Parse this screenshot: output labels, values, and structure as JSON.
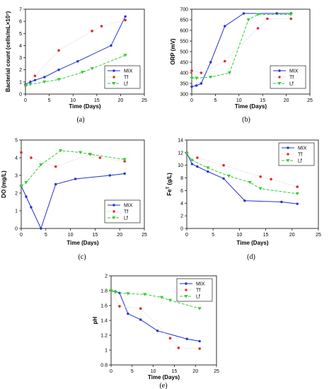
{
  "colors": {
    "MIX": "#2233cc",
    "Tf": "#e8262a",
    "Lf": "#33cc33"
  },
  "chart_data": [
    {
      "id": "a",
      "panel_label": "(a)",
      "type": "line",
      "xlabel": "Time (Days)",
      "ylabel": "Bacterial count (cells/mL×10⁷)",
      "xlim": [
        0,
        25
      ],
      "ylim": [
        0,
        7
      ],
      "xticks": [
        0,
        5,
        10,
        15,
        20,
        25
      ],
      "yticks": [
        0,
        1,
        2,
        3,
        4,
        5,
        6,
        7
      ],
      "legend_position": "bottom-right",
      "series": [
        {
          "name": "MIX",
          "style": "solid",
          "marker": "circle",
          "x": [
            0,
            1,
            2,
            4,
            7,
            11,
            18,
            21
          ],
          "y": [
            0.8,
            1.0,
            1.15,
            1.4,
            2.0,
            2.7,
            4.0,
            6.4
          ]
        },
        {
          "name": "Tf",
          "style": "dotted",
          "marker": "dot",
          "x": [
            0,
            2,
            7,
            14,
            16,
            21
          ],
          "y": [
            0.7,
            1.5,
            3.6,
            5.2,
            5.6,
            6.1
          ]
        },
        {
          "name": "Lf",
          "style": "dashed",
          "marker": "triangle",
          "x": [
            0,
            1,
            4,
            7,
            12,
            14,
            21
          ],
          "y": [
            0.7,
            0.8,
            1.0,
            1.2,
            1.8,
            2.1,
            3.2
          ]
        }
      ]
    },
    {
      "id": "b",
      "panel_label": "(b)",
      "type": "line",
      "xlabel": "Time (Days)",
      "ylabel": "ORP (mV)",
      "xlim": [
        0,
        25
      ],
      "ylim": [
        300,
        700
      ],
      "xticks": [
        0,
        5,
        10,
        15,
        20,
        25
      ],
      "yticks": [
        300,
        350,
        400,
        450,
        500,
        550,
        600,
        650,
        700
      ],
      "legend_position": "bottom-right",
      "series": [
        {
          "name": "MIX",
          "style": "solid",
          "marker": "circle",
          "x": [
            0,
            1,
            2,
            4,
            7,
            11,
            18,
            21
          ],
          "y": [
            335,
            340,
            350,
            450,
            620,
            680,
            680,
            680
          ]
        },
        {
          "name": "Tf",
          "style": "dotted",
          "marker": "dot",
          "x": [
            0,
            2,
            7,
            14,
            16,
            21
          ],
          "y": [
            410,
            400,
            455,
            610,
            655,
            655
          ]
        },
        {
          "name": "Lf",
          "style": "dashed",
          "marker": "triangle",
          "x": [
            0,
            1,
            4,
            8,
            12,
            14,
            21
          ],
          "y": [
            375,
            375,
            380,
            400,
            650,
            675,
            675
          ]
        }
      ]
    },
    {
      "id": "c",
      "panel_label": "(c)",
      "type": "line",
      "xlabel": "Time (Days)",
      "ylabel": "DO (mg/L)",
      "xlim": [
        0,
        25
      ],
      "ylim": [
        0,
        5
      ],
      "xticks": [
        0,
        5,
        10,
        15,
        20,
        25
      ],
      "yticks": [
        0,
        1,
        2,
        3,
        4,
        5
      ],
      "legend_position": "bottom-right",
      "series": [
        {
          "name": "MIX",
          "style": "solid",
          "marker": "circle",
          "x": [
            0,
            1,
            2,
            4,
            7,
            11,
            18,
            21
          ],
          "y": [
            2.4,
            1.8,
            1.2,
            0.0,
            2.5,
            2.8,
            3.0,
            3.1
          ]
        },
        {
          "name": "Tf",
          "style": "dotted",
          "marker": "dot",
          "x": [
            0,
            2,
            7,
            14,
            16,
            21
          ],
          "y": [
            4.3,
            4.0,
            3.5,
            4.2,
            4.0,
            3.8
          ]
        },
        {
          "name": "Lf",
          "style": "dashed",
          "marker": "triangle",
          "x": [
            0,
            1,
            4,
            8,
            12,
            14,
            21
          ],
          "y": [
            2.4,
            2.6,
            3.6,
            4.4,
            4.3,
            4.2,
            3.9
          ]
        }
      ]
    },
    {
      "id": "d",
      "panel_label": "(d)",
      "type": "line",
      "xlabel": "Time (Days)",
      "ylabel": "Fe",
      "ylabel_superscript": "T",
      "ylabel_suffix": " (g/L)",
      "xlim": [
        0,
        25
      ],
      "ylim": [
        0,
        14
      ],
      "xticks": [
        0,
        5,
        10,
        15,
        20,
        25
      ],
      "yticks": [
        0,
        2,
        4,
        6,
        8,
        10,
        12,
        14
      ],
      "legend_position": "top-right",
      "series": [
        {
          "name": "MIX",
          "style": "solid",
          "marker": "circle",
          "x": [
            0,
            1,
            2,
            4,
            7,
            11,
            18,
            21
          ],
          "y": [
            11.9,
            10.2,
            9.8,
            9.0,
            7.9,
            4.4,
            4.2,
            3.9
          ]
        },
        {
          "name": "Tf",
          "style": "dotted",
          "marker": "dot",
          "x": [
            0,
            2,
            7,
            14,
            16,
            21
          ],
          "y": [
            12.0,
            11.2,
            10.0,
            8.2,
            7.8,
            6.6
          ]
        },
        {
          "name": "Lf",
          "style": "dashed",
          "marker": "triangle",
          "x": [
            0,
            1,
            4,
            8,
            12,
            14,
            21
          ],
          "y": [
            11.9,
            10.8,
            9.6,
            8.3,
            7.3,
            6.3,
            5.5
          ]
        }
      ]
    },
    {
      "id": "e",
      "panel_label": "(e)",
      "type": "line",
      "xlabel": "Time (Days)",
      "ylabel": "pH",
      "xlim": [
        0,
        25
      ],
      "ylim": [
        0.8,
        2.0
      ],
      "xticks": [
        0,
        5,
        10,
        15,
        20,
        25
      ],
      "yticks": [
        0.8,
        1.0,
        1.2,
        1.4,
        1.6,
        1.8,
        2.0
      ],
      "legend_position": "top-right",
      "series": [
        {
          "name": "MIX",
          "style": "solid",
          "marker": "circle",
          "x": [
            0,
            1,
            2,
            4,
            7,
            11,
            18,
            21
          ],
          "y": [
            1.8,
            1.79,
            1.77,
            1.49,
            1.41,
            1.26,
            1.15,
            1.12
          ]
        },
        {
          "name": "Tf",
          "style": "dotted",
          "marker": "dot",
          "x": [
            0,
            2,
            7,
            14,
            16,
            21
          ],
          "y": [
            1.8,
            1.59,
            1.56,
            1.16,
            1.03,
            1.02
          ]
        },
        {
          "name": "Lf",
          "style": "dashed",
          "marker": "triangle",
          "x": [
            0,
            1,
            4,
            8,
            12,
            14,
            21
          ],
          "y": [
            1.8,
            1.78,
            1.76,
            1.75,
            1.71,
            1.67,
            1.56
          ]
        }
      ]
    }
  ]
}
